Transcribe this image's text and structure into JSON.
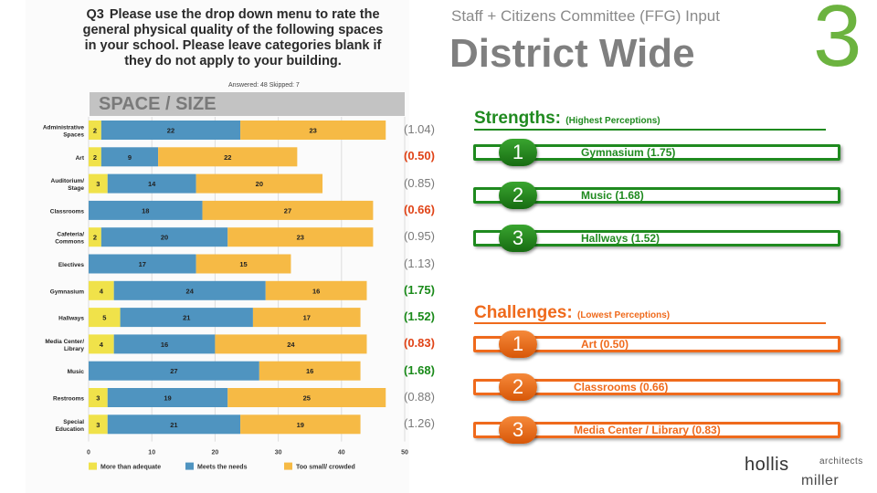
{
  "header": {
    "subtitle": "Staff + Citizens Committee (FFG) Input",
    "title": "District Wide",
    "slide_number": "3"
  },
  "question": {
    "label": "Q3",
    "text": "Please use the drop down menu to rate the general physical quality of the following spaces in your school. Please leave categories blank if they do not apply to your building.",
    "answered_skipped": "Answered: 48    Skipped: 7"
  },
  "section_label": "SPACE / SIZE",
  "chart_data": {
    "type": "bar",
    "orientation": "horizontal",
    "stacked": true,
    "categories": [
      "Administrative Spaces",
      "Art",
      "Auditorium/ Stage",
      "Classrooms",
      "Cafeteria/ Commons",
      "Electives",
      "Gymnasium",
      "Hallways",
      "Media Center/ Library",
      "Music",
      "Restrooms",
      "Special Education"
    ],
    "series": [
      {
        "name": "More than adequate",
        "color": "#f0e24a",
        "values": [
          2,
          2,
          3,
          0,
          2,
          0,
          4,
          5,
          4,
          0,
          3,
          3
        ]
      },
      {
        "name": "Meets the needs",
        "color": "#4f94c0",
        "values": [
          22,
          9,
          14,
          18,
          20,
          17,
          24,
          21,
          16,
          27,
          19,
          21
        ]
      },
      {
        "name": "Too small/ crowded",
        "color": "#f6ba45",
        "values": [
          23,
          22,
          20,
          27,
          23,
          15,
          16,
          17,
          24,
          16,
          25,
          19
        ]
      }
    ],
    "xlim": [
      0,
      50
    ],
    "xticks": [
      "0",
      "10",
      "20",
      "30",
      "40",
      "50"
    ],
    "legend_position": "bottom",
    "scores": [
      "(1.04)",
      "(0.50)",
      "(0.85)",
      "(0.66)",
      "(0.95)",
      "(1.13)",
      "(1.75)",
      "(1.52)",
      "(0.83)",
      "(1.68)",
      "(0.88)",
      "(1.26)"
    ],
    "score_styles": [
      "plain",
      "red",
      "plain",
      "red",
      "plain",
      "plain",
      "green",
      "green",
      "red",
      "green",
      "plain",
      "plain"
    ]
  },
  "strengths": {
    "heading": "Strengths:",
    "note": "(Highest Perceptions)",
    "color": "#1f8a1f",
    "items": [
      {
        "rank": "1",
        "label": "Gymnasium (1.75)"
      },
      {
        "rank": "2",
        "label": "Music (1.68)"
      },
      {
        "rank": "3",
        "label": "Hallways (1.52)"
      }
    ]
  },
  "challenges": {
    "heading": "Challenges:",
    "note": "(Lowest Perceptions)",
    "color": "#ef6a1c",
    "items": [
      {
        "rank": "1",
        "label": "Art (0.50)"
      },
      {
        "rank": "2",
        "label": "Classrooms (0.66)"
      },
      {
        "rank": "3",
        "label": "Media Center / Library (0.83)"
      }
    ]
  },
  "logo": {
    "name1": "hollis",
    "name2": "miller",
    "tag": "architects"
  }
}
